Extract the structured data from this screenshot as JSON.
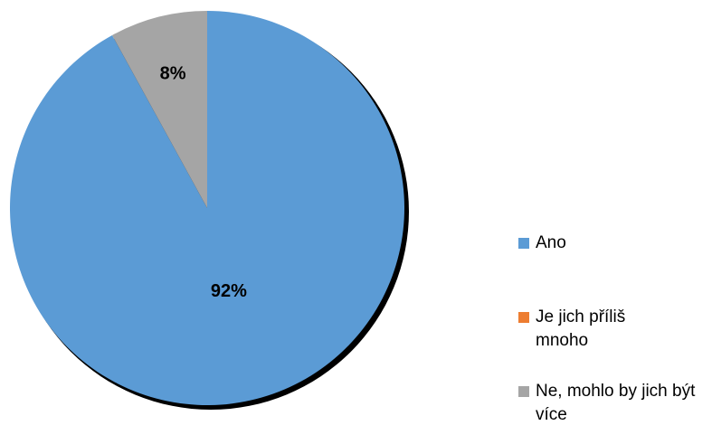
{
  "chart_data": {
    "type": "pie",
    "title": "",
    "categories": [
      "Ano",
      "Je jich příliš mnoho",
      "Ne, mohlo by jich být více"
    ],
    "values": [
      92,
      0,
      8
    ],
    "data_labels": [
      "92%",
      "",
      "8%"
    ],
    "colors": [
      "#5B9BD5",
      "#ED7D31",
      "#A5A5A5"
    ],
    "legend": {
      "position": "right",
      "items": [
        {
          "label": "Ano",
          "color": "#5B9BD5"
        },
        {
          "label": "Je jich příliš mnoho",
          "color": "#ED7D31"
        },
        {
          "label": "Ne, mohlo by jich být více",
          "color": "#A5A5A5"
        }
      ]
    }
  }
}
